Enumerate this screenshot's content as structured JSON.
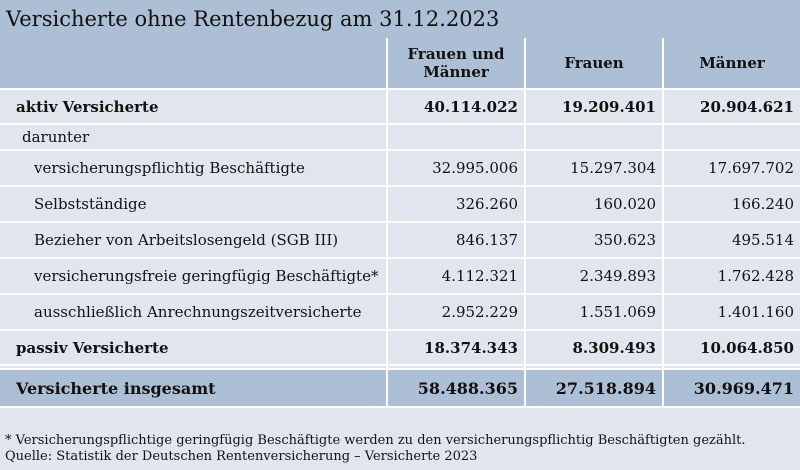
{
  "title": "Versicherte ohne Rentenbezug am 31.12.2023",
  "columns": [
    "",
    "Frauen und Männer",
    "Frauen",
    "Männer"
  ],
  "rows": [
    {
      "label": "aktiv Versicherte",
      "values": [
        "40.114.022",
        "19.209.401",
        "20.904.621"
      ],
      "style": "bold"
    },
    {
      "label": "darunter",
      "values": [
        "",
        "",
        ""
      ],
      "style": "sub"
    },
    {
      "label": "versicherungspflichtig Beschäftigte",
      "values": [
        "32.995.006",
        "15.297.304",
        "17.697.702"
      ],
      "style": "indent"
    },
    {
      "label": "Selbstständige",
      "values": [
        "326.260",
        "160.020",
        "166.240"
      ],
      "style": "indent"
    },
    {
      "label": "Bezieher von Arbeitslosengeld (SGB III)",
      "values": [
        "846.137",
        "350.623",
        "495.514"
      ],
      "style": "indent"
    },
    {
      "label": "versicherungsfreie geringfügig Beschäftigte*",
      "values": [
        "4.112.321",
        "2.349.893",
        "1.762.428"
      ],
      "style": "indent"
    },
    {
      "label": "ausschließlich Anrechnungszeitversicherte",
      "values": [
        "2.952.229",
        "1.551.069",
        "1.401.160"
      ],
      "style": "indent"
    },
    {
      "label": "passiv Versicherte",
      "values": [
        "18.374.343",
        "8.309.493",
        "10.064.850"
      ],
      "style": "bold"
    },
    {
      "label": "Versicherte insgesamt",
      "values": [
        "58.488.365",
        "27.518.894",
        "30.969.471"
      ],
      "style": "total"
    }
  ],
  "footnote": "* Versicherungspflichtige geringfügig Beschäftigte werden zu den versicherungspflichtig Beschäftigten gezählt.",
  "source": "Quelle: Statistik der Deutschen Rentenversicherung – Versicherte 2023",
  "colors": {
    "header": "#adbfd4",
    "background": "#e1e6ee"
  }
}
